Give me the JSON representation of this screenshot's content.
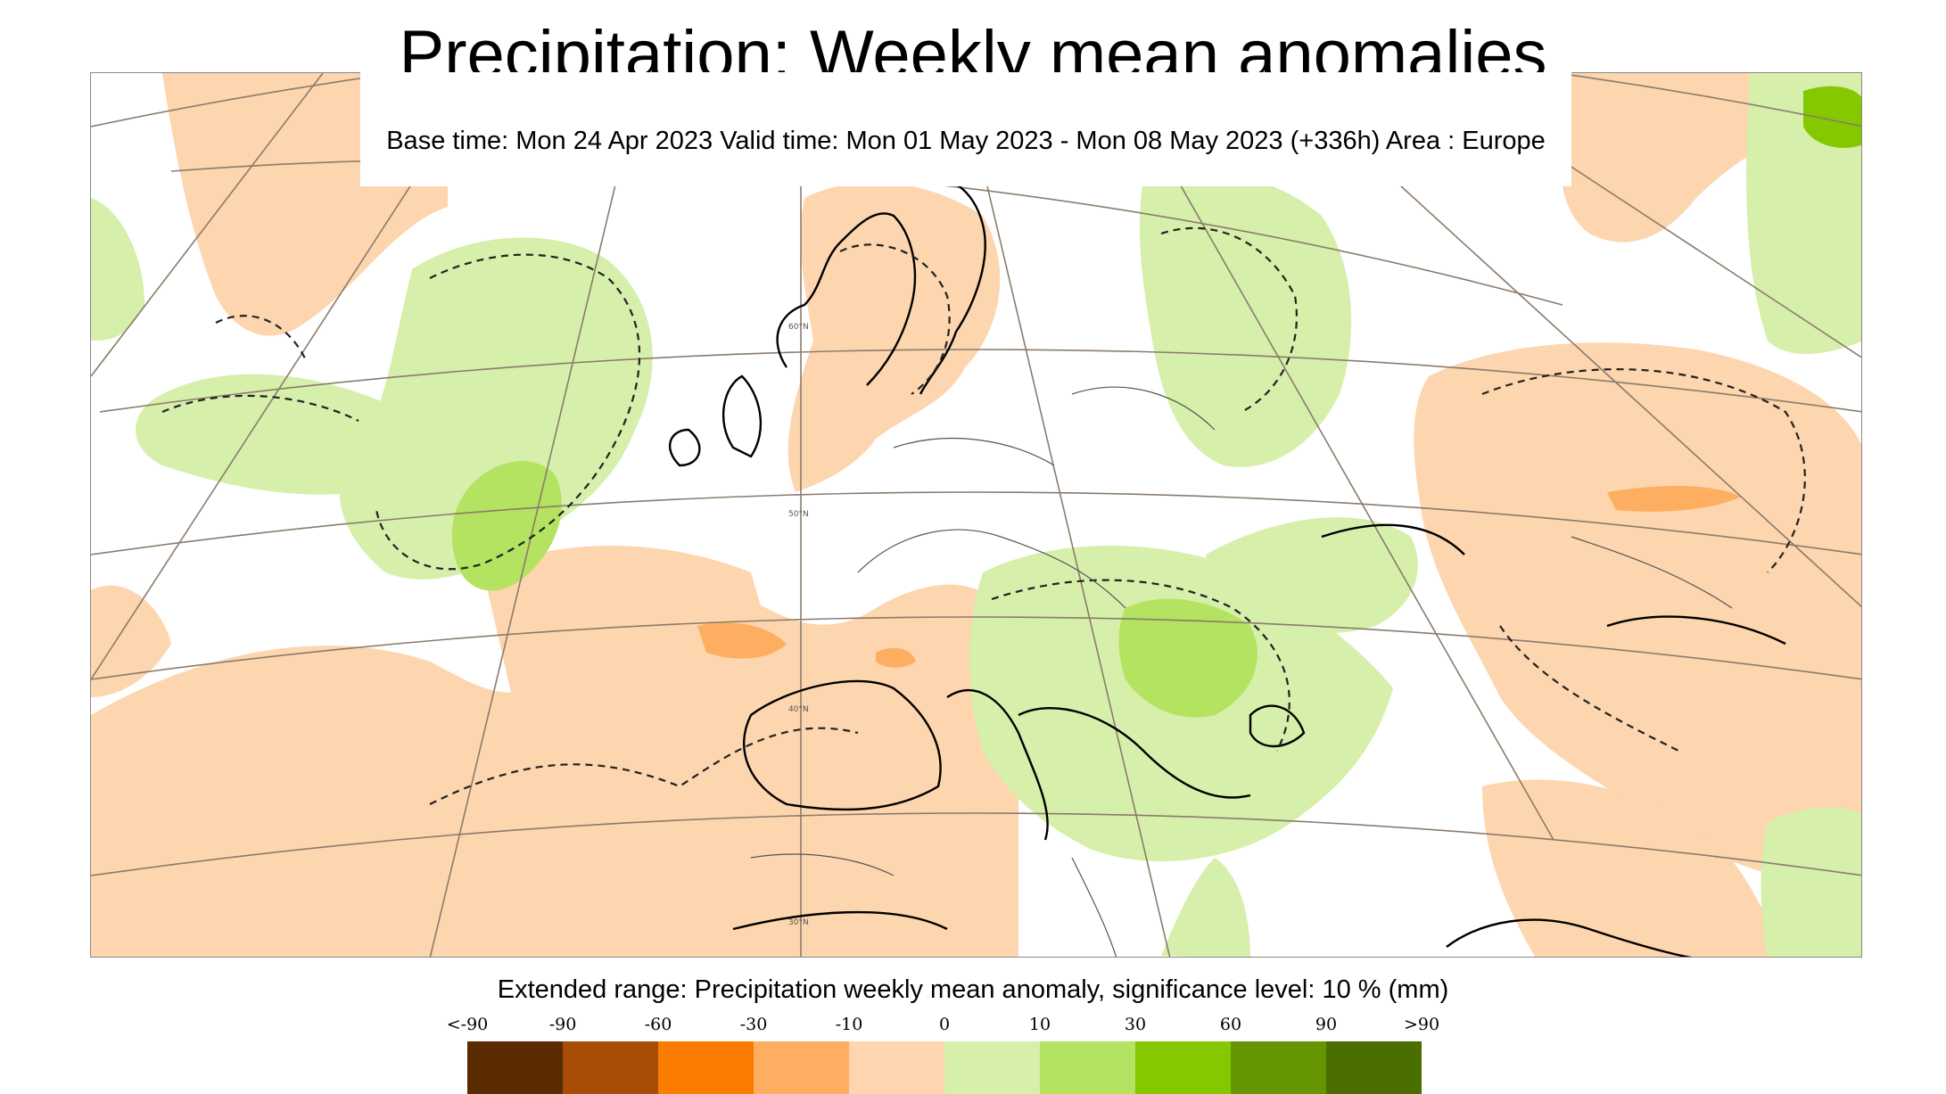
{
  "map": {
    "title": "Precipitation: Weekly mean anomalies",
    "subtitle": "Base time: Mon 24 Apr 2023 Valid time: Mon 01 May 2023 - Mon 08 May 2023 (+336h) Area : Europe",
    "latitude_labels": [
      "60°N",
      "50°N",
      "40°N",
      "30°N"
    ],
    "colors": {
      "land_outline": "#000000",
      "border": "#555555",
      "graticule": "#8b7b6b",
      "significance_contour": "#222222"
    }
  },
  "legend": {
    "title": "Extended range: Precipitation weekly mean anomaly, significance level: 10 % (mm)",
    "tick_labels": [
      "<-90",
      "-90",
      "-60",
      "-30",
      "-10",
      "0",
      "10",
      "30",
      "60",
      "90",
      ">90"
    ],
    "colors": [
      "#5a2a00",
      "#a84c06",
      "#fb7c00",
      "#fdae61",
      "#fdd5ae",
      "#d6efaa",
      "#b4e261",
      "#86c800",
      "#659500",
      "#4b6e00"
    ]
  }
}
